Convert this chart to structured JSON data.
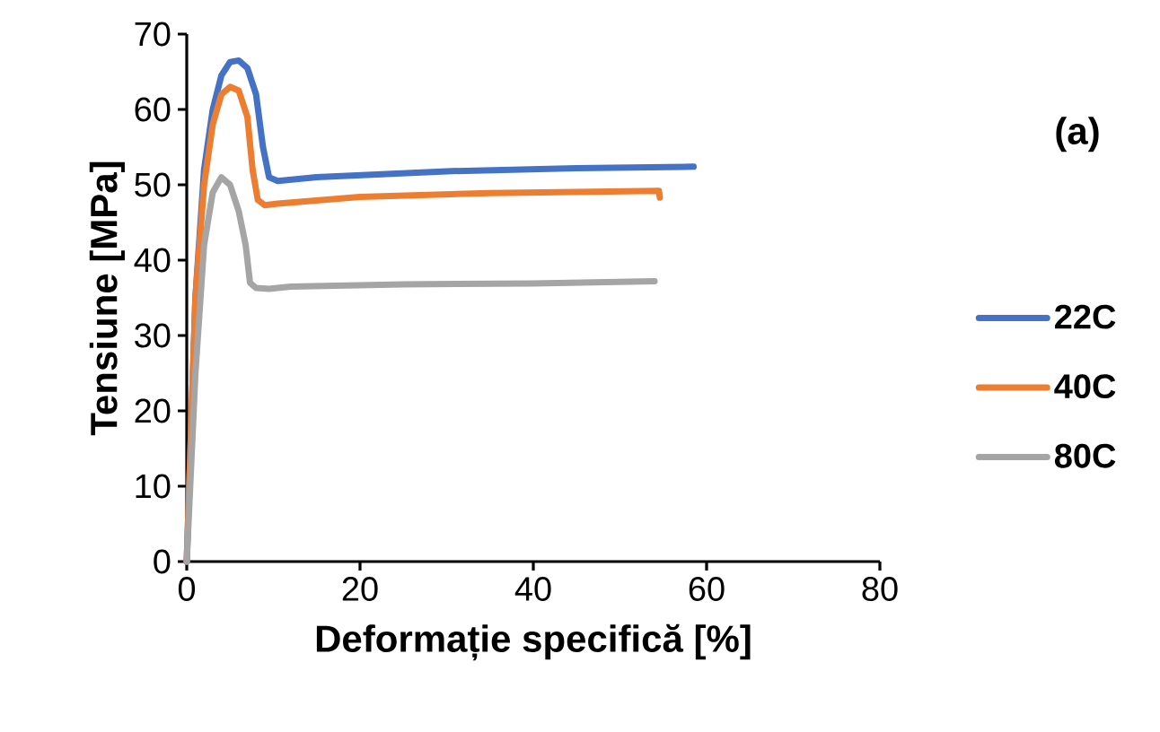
{
  "chart_data": {
    "type": "line",
    "xlabel": "Deformație specifică [%]",
    "ylabel": "Tensiune [MPa]",
    "annotations": [
      "(a)"
    ],
    "xlim": [
      0,
      80
    ],
    "ylim": [
      0,
      70
    ],
    "xticks": [
      0,
      20,
      40,
      60,
      80
    ],
    "yticks": [
      0,
      10,
      20,
      30,
      40,
      50,
      60,
      70
    ],
    "grid": false,
    "legend": "right",
    "marker": "none",
    "line_style": "solid",
    "series": [
      {
        "name": "22C",
        "color": "#4472c4",
        "x": [
          0,
          1,
          2,
          3,
          4,
          5,
          6,
          7,
          8,
          8.8,
          9.5,
          10.5,
          15,
          30,
          45,
          58.5
        ],
        "values": [
          0,
          35,
          52,
          60,
          64.5,
          66.3,
          66.5,
          65.5,
          62,
          55,
          51,
          50.5,
          51,
          51.8,
          52.2,
          52.4
        ]
      },
      {
        "name": "40C",
        "color": "#ed7d31",
        "x": [
          0,
          1,
          2,
          3,
          4,
          5,
          6,
          7,
          7.6,
          8.2,
          9,
          10.5,
          20,
          35,
          54.5,
          54.6
        ],
        "values": [
          0,
          35,
          50,
          58,
          62,
          63,
          62.5,
          59,
          52,
          48,
          47.3,
          47.5,
          48.4,
          48.9,
          49.2,
          48.3
        ]
      },
      {
        "name": "80C",
        "color": "#a5a5a5",
        "x": [
          0,
          1,
          2,
          3,
          4,
          5,
          6,
          6.8,
          7.3,
          8,
          9.5,
          12,
          25,
          40,
          54
        ],
        "values": [
          0,
          25,
          42,
          49,
          51,
          50,
          46.5,
          42,
          37,
          36.3,
          36.2,
          36.5,
          36.8,
          36.9,
          37.2
        ]
      }
    ]
  }
}
